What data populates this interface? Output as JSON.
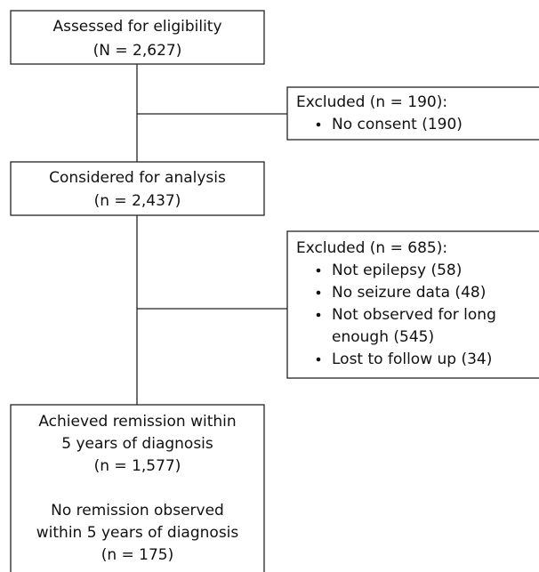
{
  "nodes": [
    {
      "lines": [
        "Assessed for eligibility",
        "(N = 2,627)"
      ]
    },
    {
      "lines": [
        "Considered for analysis",
        "(n = 2,437)"
      ]
    },
    {
      "lines": [
        "Achieved remission within",
        "5 years of diagnosis",
        "(n = 1,577)",
        "No remission observed",
        "within 5 years of diagnosis",
        "(n = 175)"
      ]
    }
  ],
  "exclusions": [
    {
      "title": "Excluded (n = 190):",
      "items": [
        [
          "No consent (190)"
        ]
      ]
    },
    {
      "title": "Excluded (n = 685):",
      "items": [
        [
          "Not epilepsy (58)"
        ],
        [
          "No seizure data (48)"
        ],
        [
          "Not observed for long",
          "enough (545)"
        ],
        [
          "Lost to follow up (34)"
        ]
      ]
    }
  ]
}
